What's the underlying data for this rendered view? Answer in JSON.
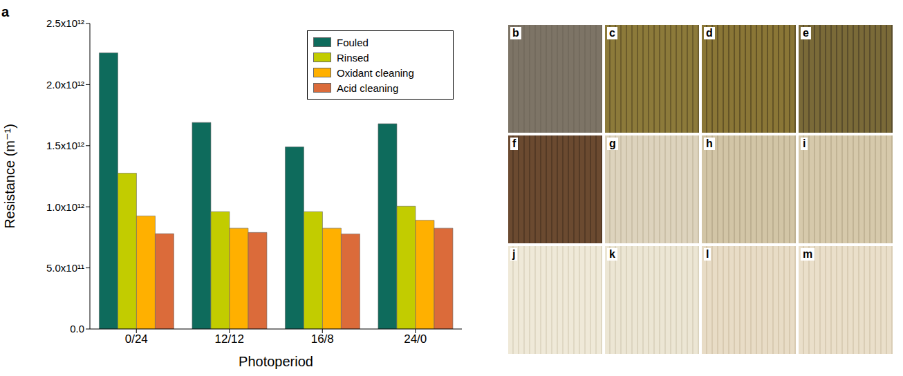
{
  "chart_data": {
    "type": "bar",
    "panel_label": "a",
    "x_label": "Photoperiod",
    "y_label": "Resistance (m⁻¹)",
    "categories": [
      "0/24",
      "12/12",
      "16/8",
      "24/0"
    ],
    "series": [
      {
        "name": "Fouled",
        "color": "#0e6b5c",
        "values": [
          2260000000000,
          1690000000000,
          1490000000000,
          1680000000000
        ]
      },
      {
        "name": "Rinsed",
        "color": "#c2cc00",
        "values": [
          1275000000000,
          960000000000,
          960000000000,
          1005000000000
        ]
      },
      {
        "name": "Oxidant cleaning",
        "color": "#ffb000",
        "values": [
          925000000000,
          825000000000,
          825000000000,
          890000000000
        ]
      },
      {
        "name": "Acid cleaning",
        "color": "#db6b3a",
        "values": [
          780000000000,
          790000000000,
          778000000000,
          825000000000
        ]
      }
    ],
    "ylim": [
      0,
      2500000000000
    ],
    "yticks": [
      {
        "value": 0,
        "label": "0.0"
      },
      {
        "value": 500000000000,
        "label": "5.0x10¹¹"
      },
      {
        "value": 1000000000000,
        "label": "1.0x10¹²"
      },
      {
        "value": 1500000000000,
        "label": "1.5x10¹²"
      },
      {
        "value": 2000000000000,
        "label": "2.0x10¹²"
      },
      {
        "value": 2500000000000,
        "label": "2.5x10¹²"
      }
    ],
    "legend": "upper right",
    "grid": false
  },
  "photos": {
    "panels": [
      {
        "label": "b"
      },
      {
        "label": "c"
      },
      {
        "label": "d"
      },
      {
        "label": "e"
      },
      {
        "label": "f"
      },
      {
        "label": "g"
      },
      {
        "label": "h"
      },
      {
        "label": "i"
      },
      {
        "label": "j"
      },
      {
        "label": "k"
      },
      {
        "label": "l"
      },
      {
        "label": "m"
      }
    ]
  }
}
